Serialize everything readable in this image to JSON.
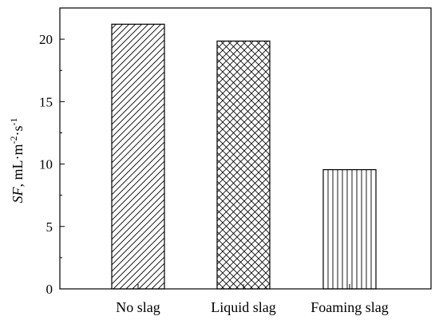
{
  "chart_data": {
    "type": "bar",
    "categories": [
      "No slag",
      "Liquid slag",
      "Foaming slag"
    ],
    "values": [
      21.2,
      19.85,
      9.55
    ],
    "patterns": [
      "diagonal-hatch",
      "cross-hatch",
      "vertical-hatch"
    ],
    "title": "",
    "xlabel": "",
    "ylabel_italic": "SF",
    "ylabel_rest": ", mL·m",
    "ylabel_sup1": "-2",
    "ylabel_mid": "·s",
    "ylabel_sup2": "-1",
    "ylim": [
      0,
      22.5
    ],
    "yticks": [
      0,
      5,
      10,
      15,
      20
    ],
    "grid": false,
    "colors": {
      "bar_fill": "#ffffff",
      "hatch": "#000000",
      "axis": "#000000"
    }
  }
}
